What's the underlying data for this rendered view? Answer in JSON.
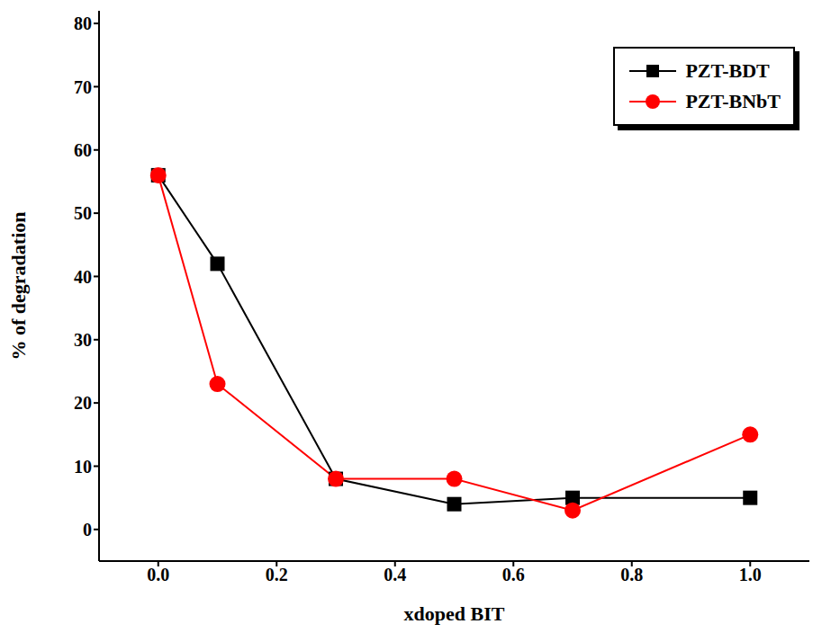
{
  "chart_data": {
    "type": "line",
    "x_label": "xdoped BIT",
    "y_label": "% of degradation",
    "xlim": [
      -0.1,
      1.1
    ],
    "xticks": [
      {
        "value": 0,
        "label": "0.0"
      },
      {
        "value": 0.2,
        "label": "0.2"
      },
      {
        "value": 0.4,
        "label": "0.4"
      },
      {
        "value": 0.6,
        "label": "0.6"
      },
      {
        "value": 0.8,
        "label": "0.8"
      },
      {
        "value": 1,
        "label": "1.0"
      }
    ],
    "ylim": [
      -5,
      82
    ],
    "yticks": [
      0,
      10,
      20,
      30,
      40,
      50,
      60,
      70,
      80
    ],
    "x": [
      0,
      0.1,
      0.3,
      0.5,
      0.7,
      1.0
    ],
    "series": [
      {
        "name": "PZT-BDT",
        "color": "#000000",
        "marker": "square",
        "line_style": "solid",
        "values": [
          56,
          42,
          8,
          4,
          5,
          5
        ]
      },
      {
        "name": "PZT-BNbT",
        "color": "#ff0000",
        "marker": "circle",
        "line_style": "solid",
        "values": [
          56,
          23,
          8,
          8,
          3,
          15
        ]
      }
    ],
    "grid": false,
    "legend": "upper right"
  }
}
